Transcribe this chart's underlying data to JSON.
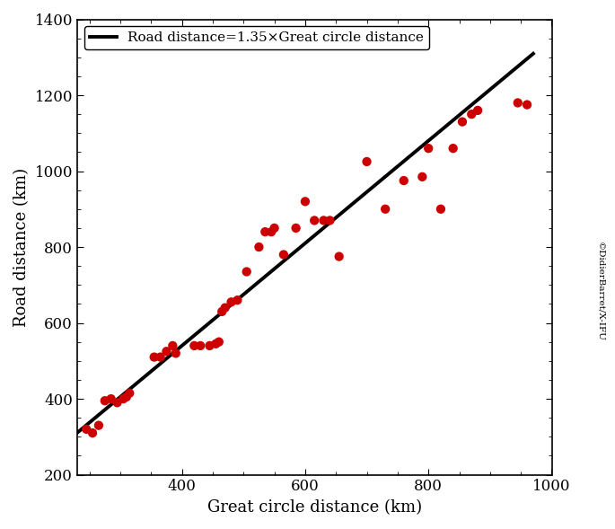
{
  "scatter_x": [
    245,
    255,
    265,
    275,
    285,
    295,
    305,
    310,
    315,
    355,
    365,
    375,
    385,
    390,
    420,
    430,
    445,
    455,
    460,
    465,
    470,
    480,
    490,
    505,
    525,
    535,
    545,
    550,
    565,
    585,
    600,
    615,
    630,
    640,
    655,
    700,
    730,
    760,
    790,
    800,
    820,
    840,
    855,
    870,
    880,
    945,
    960
  ],
  "scatter_y": [
    320,
    310,
    330,
    395,
    400,
    390,
    400,
    405,
    415,
    510,
    510,
    525,
    540,
    520,
    540,
    540,
    540,
    545,
    550,
    630,
    640,
    655,
    660,
    735,
    800,
    840,
    840,
    850,
    780,
    850,
    920,
    870,
    870,
    870,
    775,
    1025,
    900,
    975,
    985,
    1060,
    900,
    1060,
    1130,
    1150,
    1160,
    1180,
    1175
  ],
  "line_slope": 1.35,
  "line_x_start": 230,
  "line_x_end": 970,
  "dot_color": "#cc0000",
  "dot_size": 55,
  "line_color": "#000000",
  "line_width": 2.8,
  "xlabel": "Great circle distance (km)",
  "ylabel": "Road distance (km)",
  "legend_label": "Road distance=1.35×Great circle distance",
  "xlim": [
    230,
    1000
  ],
  "ylim": [
    200,
    1400
  ],
  "xticks": [
    400,
    600,
    800,
    1000
  ],
  "yticks": [
    200,
    400,
    600,
    800,
    1000,
    1200,
    1400
  ],
  "watermark": "©DidierBarret/X-IFU",
  "bg_color": "#ffffff"
}
